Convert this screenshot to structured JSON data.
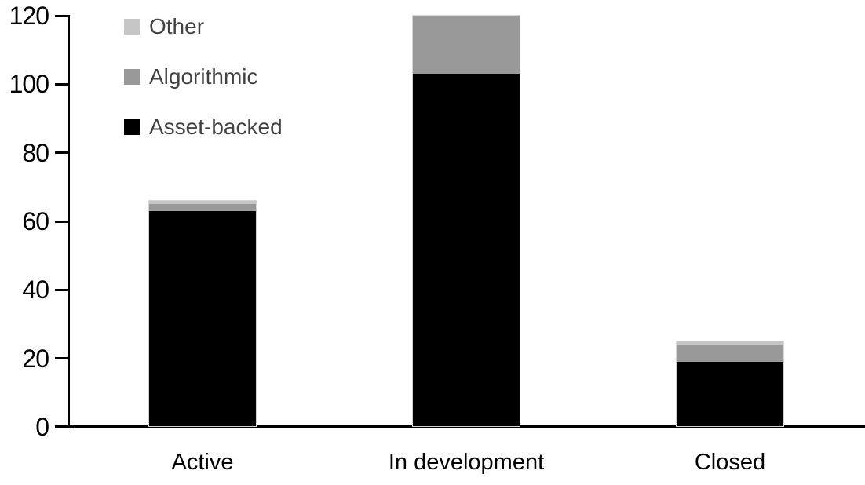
{
  "chart_data": {
    "type": "bar",
    "stacked": true,
    "title": "",
    "xlabel": "",
    "ylabel": "",
    "categories": [
      "Active",
      "In development",
      "Closed"
    ],
    "series": [
      {
        "name": "Asset-backed",
        "color": "#000000",
        "values": [
          63,
          103,
          19
        ]
      },
      {
        "name": "Algorithmic",
        "color": "#999999",
        "values": [
          2,
          17,
          5
        ]
      },
      {
        "name": "Other",
        "color": "#c6c6c6",
        "values": [
          1,
          0,
          1
        ]
      }
    ],
    "totals": [
      66,
      120,
      25
    ],
    "ylim": [
      0,
      120
    ],
    "yticks": [
      0,
      20,
      40,
      60,
      80,
      100,
      120
    ],
    "ytick_labels": [
      "0",
      "20",
      "40",
      "60",
      "80",
      "100",
      "120"
    ],
    "grid": false,
    "legend": {
      "position": "top-left",
      "order_top_to_bottom": [
        "Other",
        "Algorithmic",
        "Asset-backed"
      ]
    },
    "colors": {
      "axis": "#000000",
      "tick_label": "#000000",
      "legend_text": "#424242",
      "bar_border": "#d4d4d4",
      "background": "#ffffff"
    }
  }
}
